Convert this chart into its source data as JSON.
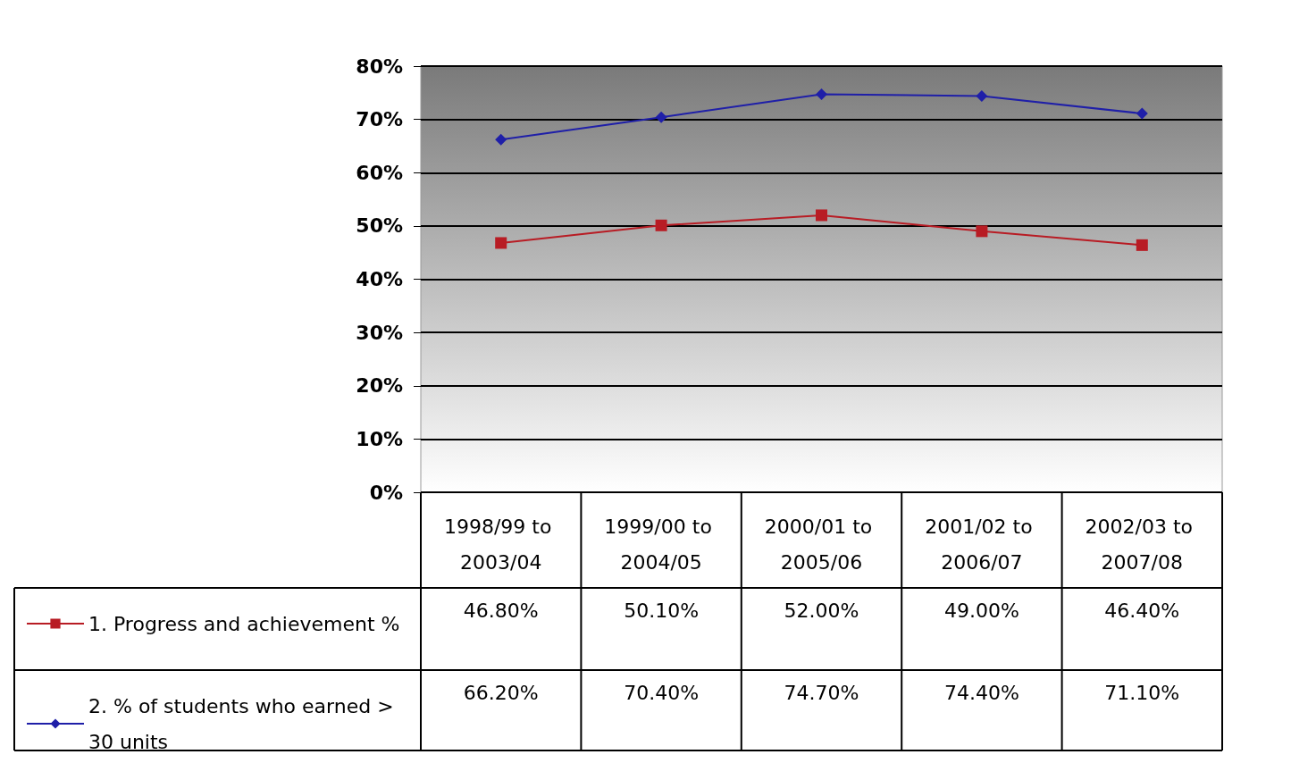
{
  "chart_data": {
    "type": "line",
    "categories": [
      "1998/99 to 2003/04",
      "1999/00 to 2004/05",
      "2000/01 to 2005/06",
      "2001/02 to 2006/07",
      "2002/03 to 2007/08"
    ],
    "series": [
      {
        "name": "1. Progress and achievement %",
        "color": "#b81c24",
        "marker": "square",
        "values": [
          46.8,
          50.1,
          52.0,
          49.0,
          46.4
        ],
        "value_labels": [
          "46.80%",
          "50.10%",
          "52.00%",
          "49.00%",
          "46.40%"
        ]
      },
      {
        "name": "2. % of students who earned > 30 units",
        "color": "#1f1fa8",
        "marker": "diamond",
        "values": [
          66.2,
          70.4,
          74.7,
          74.4,
          71.1
        ],
        "value_labels": [
          "66.20%",
          "70.40%",
          "74.70%",
          "74.40%",
          "71.10%"
        ]
      }
    ],
    "ylim": [
      0,
      80
    ],
    "yticks": [
      {
        "value": 0,
        "label": "0%"
      },
      {
        "value": 10,
        "label": "10%"
      },
      {
        "value": 20,
        "label": "20%"
      },
      {
        "value": 30,
        "label": "30%"
      },
      {
        "value": 40,
        "label": "40%"
      },
      {
        "value": 50,
        "label": "50%"
      },
      {
        "value": 60,
        "label": "60%"
      },
      {
        "value": 70,
        "label": "70%"
      },
      {
        "value": 80,
        "label": "80%"
      }
    ],
    "grid": "y",
    "legend": "bottom left"
  }
}
